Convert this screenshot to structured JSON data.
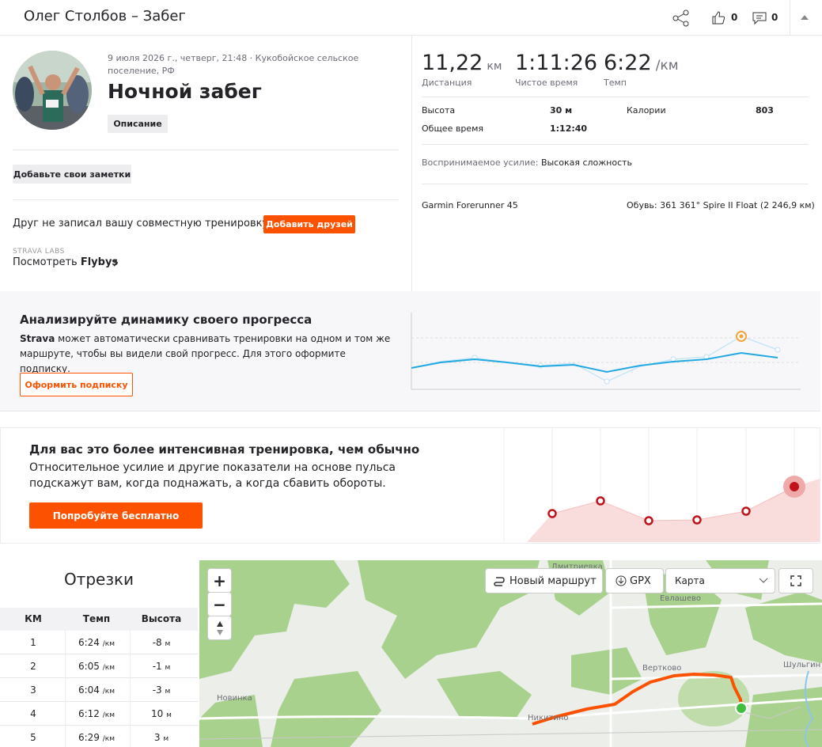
{
  "header": {
    "title": "Олег Столбов – Забег",
    "kudos_count": 0,
    "comments_count": 0
  },
  "activity": {
    "meta": "9 июля 2026 г., четверг, 21:48 · Кукобойское сельское поселение, РФ",
    "name": "Ночной забег",
    "description_button": "Описание",
    "notes_button": "Добавьте свои заметки",
    "friends_prompt": "Друг не записал вашу совместную тренировку?",
    "friends_button": "Добавить друзей",
    "labs_label": "STRAVA LABS",
    "flybys_prefix": "Посмотреть",
    "flybys_link": "Flybys"
  },
  "stats": {
    "primary": [
      {
        "value": "11,22",
        "unit": "км",
        "label": "Дистанция"
      },
      {
        "value": "1:11:26",
        "label": "Чистое время"
      },
      {
        "value": "6:22",
        "unit": "/км",
        "label": "Темп"
      }
    ],
    "details": [
      {
        "label": "Высота",
        "value": "30 м"
      },
      {
        "label": "Калории",
        "value": 803
      },
      {
        "label": "Общее время",
        "value": "1:12:40"
      }
    ],
    "effort_label": "Воспринимаемое усилие:",
    "effort_value": "Высокая сложность",
    "device": "Garmin Forerunner 45",
    "shoes_label": "Обувь:",
    "shoes_value": "361 361° Spire II Float (2 246,9 км)"
  },
  "promo_progress": {
    "title": "Анализируйте динамику своего прогресса",
    "brand": "Strava",
    "text": "может автоматически сравнивать тренировки на одном и том же маршруте, чтобы вы видели свой прогресс. Для этого оформите подписку.",
    "button": "Оформить подписку"
  },
  "promo_effort": {
    "title": "Для вас это более интенсивная тренировка, чем обычно",
    "text": "Относительное усилие и другие показатели на основе пульса подскажут вам, когда поднажать, а когда сбавить обороты.",
    "button": "Попробуйте бесплатно"
  },
  "splits": {
    "title": "Отрезки",
    "columns": [
      "КМ",
      "Темп",
      "Высота"
    ],
    "rows": [
      {
        "km": 1,
        "pace": "6:24",
        "pace_unit": "/км",
        "elevation": -8,
        "elevation_unit": "м"
      },
      {
        "km": 2,
        "pace": "6:05",
        "pace_unit": "/км",
        "elevation": -1,
        "elevation_unit": "м"
      },
      {
        "km": 3,
        "pace": "6:04",
        "pace_unit": "/км",
        "elevation": -3,
        "elevation_unit": "м"
      },
      {
        "km": 4,
        "pace": "6:12",
        "pace_unit": "/км",
        "elevation": 10,
        "elevation_unit": "м"
      },
      {
        "km": 5,
        "pace": "6:29",
        "pace_unit": "/км",
        "elevation": 3,
        "elevation_unit": "м"
      }
    ]
  },
  "map": {
    "zoom_in": "+",
    "zoom_out": "−",
    "new_route": "Новый маршрут",
    "gpx": "GPX",
    "layer": "Карта",
    "places": [
      "Дмитриевка",
      "Евлашево",
      "Вертково",
      "Шульгин",
      "Новинка",
      "Никитино"
    ]
  }
}
